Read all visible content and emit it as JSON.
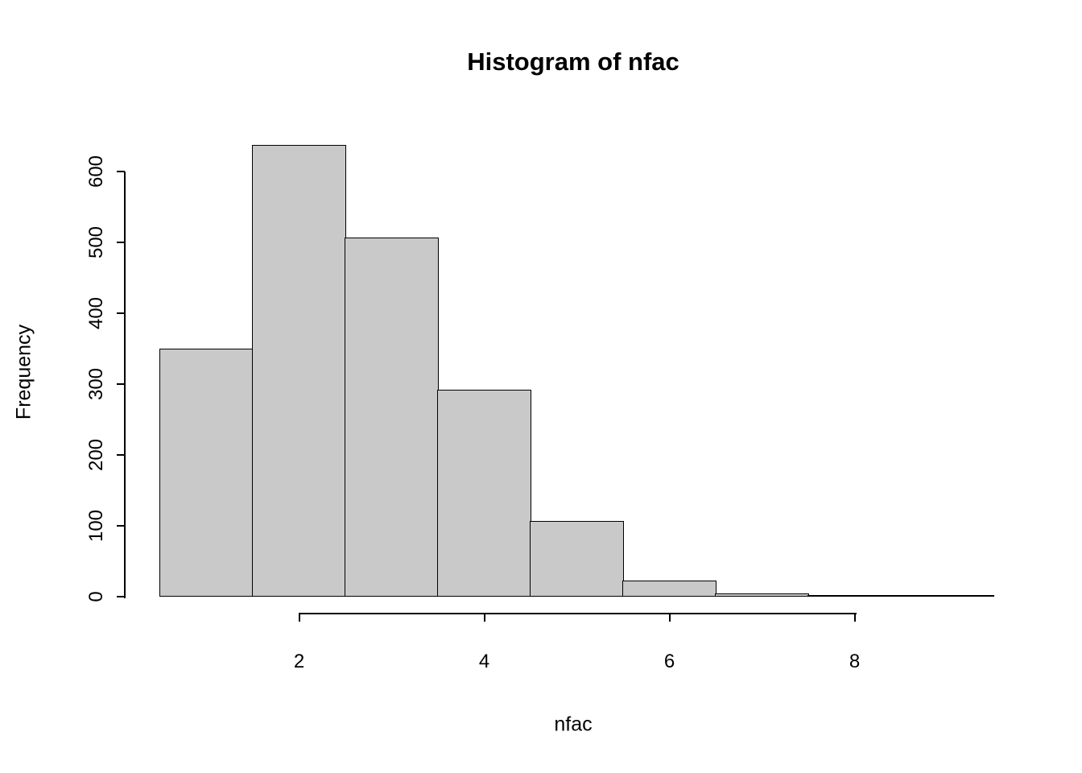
{
  "figure": {
    "background": "#FFFFFF",
    "text_color": "#000000"
  },
  "chart_data": {
    "type": "bar",
    "subtype": "histogram",
    "title": "Histogram of nfac",
    "xlabel": "nfac",
    "ylabel": "Frequency",
    "bin_breaks": [
      0.5,
      1.5,
      2.5,
      3.5,
      4.5,
      5.5,
      6.5,
      7.5,
      8.5,
      9.5
    ],
    "bin_centers": [
      1,
      2,
      3,
      4,
      5,
      6,
      7,
      8,
      9
    ],
    "counts": [
      350,
      638,
      507,
      292,
      107,
      23,
      5,
      2,
      1
    ],
    "xticks": [
      2,
      4,
      6,
      8
    ],
    "yticks": [
      0,
      100,
      200,
      300,
      400,
      500,
      600
    ],
    "xlim": [
      0.5,
      9.5
    ],
    "ylim": [
      0,
      640
    ],
    "grid": false,
    "legend": false,
    "bar_fill": "#C9C9C9",
    "bar_stroke": "#000000"
  }
}
